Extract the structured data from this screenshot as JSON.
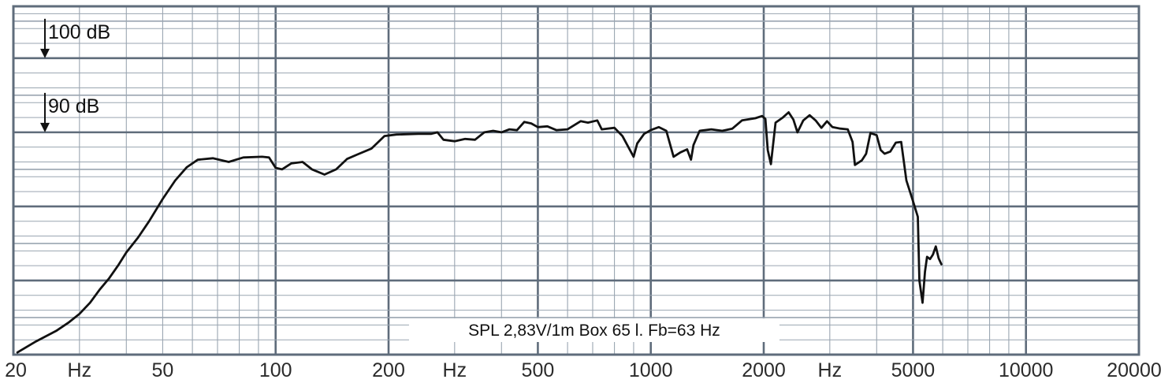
{
  "chart_data": {
    "type": "line",
    "title": "",
    "xlabel": "Hz",
    "ylabel": "",
    "x_scale": "log",
    "xlim": [
      20,
      20000
    ],
    "ylim": [
      60,
      107
    ],
    "grid": true,
    "legend": "none",
    "colors": {
      "background": "#ffffff",
      "grid_minor": "#9aa5b1",
      "grid_major": "#5f6c7b",
      "curve": "#111111",
      "text": "#2b2b2b"
    },
    "x_tick_labels": [
      {
        "value": 20,
        "label": "20"
      },
      {
        "value": 30,
        "label": "Hz"
      },
      {
        "value": 50,
        "label": "50"
      },
      {
        "value": 100,
        "label": "100"
      },
      {
        "value": 200,
        "label": "200"
      },
      {
        "value": 300,
        "label": "Hz"
      },
      {
        "value": 500,
        "label": "500"
      },
      {
        "value": 1000,
        "label": "1000"
      },
      {
        "value": 2000,
        "label": "2000"
      },
      {
        "value": 3000,
        "label": "Hz"
      },
      {
        "value": 5000,
        "label": "5000"
      },
      {
        "value": 10000,
        "label": "10000"
      },
      {
        "value": 20000,
        "label": "20000"
      }
    ],
    "reference_levels": [
      {
        "value": 100,
        "label": "100 dB"
      },
      {
        "value": 90,
        "label": "90 dB"
      }
    ],
    "annotation": "SPL   2,83V/1m   Box 65 l.   Fb=63 Hz",
    "series": [
      {
        "points": [
          [
            20.5,
            60.3
          ],
          [
            23,
            61.8
          ],
          [
            26,
            63.2
          ],
          [
            28,
            64.3
          ],
          [
            30,
            65.5
          ],
          [
            32,
            67.0
          ],
          [
            34,
            68.8
          ],
          [
            36,
            70.3
          ],
          [
            38,
            72.0
          ],
          [
            40,
            73.8
          ],
          [
            43,
            75.8
          ],
          [
            46,
            78.0
          ],
          [
            50,
            81.0
          ],
          [
            54,
            83.5
          ],
          [
            58,
            85.3
          ],
          [
            62,
            86.3
          ],
          [
            68,
            86.5
          ],
          [
            75,
            86.0
          ],
          [
            82,
            86.6
          ],
          [
            92,
            86.7
          ],
          [
            96,
            86.6
          ],
          [
            100,
            85.2
          ],
          [
            104,
            85.0
          ],
          [
            110,
            85.8
          ],
          [
            118,
            86.0
          ],
          [
            125,
            85.0
          ],
          [
            135,
            84.3
          ],
          [
            145,
            85.0
          ],
          [
            155,
            86.4
          ],
          [
            165,
            87.0
          ],
          [
            180,
            87.8
          ],
          [
            195,
            89.5
          ],
          [
            210,
            89.7
          ],
          [
            240,
            89.8
          ],
          [
            260,
            89.8
          ],
          [
            270,
            90.0
          ],
          [
            280,
            89.0
          ],
          [
            300,
            88.8
          ],
          [
            320,
            89.1
          ],
          [
            340,
            89.0
          ],
          [
            360,
            90.0
          ],
          [
            380,
            90.2
          ],
          [
            400,
            90.0
          ],
          [
            420,
            90.4
          ],
          [
            440,
            90.3
          ],
          [
            460,
            91.4
          ],
          [
            480,
            91.2
          ],
          [
            500,
            90.7
          ],
          [
            530,
            90.8
          ],
          [
            560,
            90.3
          ],
          [
            600,
            90.4
          ],
          [
            650,
            91.5
          ],
          [
            680,
            91.3
          ],
          [
            720,
            91.6
          ],
          [
            740,
            90.4
          ],
          [
            800,
            90.6
          ],
          [
            840,
            89.5
          ],
          [
            880,
            87.6
          ],
          [
            900,
            86.7
          ],
          [
            920,
            88.5
          ],
          [
            960,
            89.8
          ],
          [
            1000,
            90.3
          ],
          [
            1050,
            90.7
          ],
          [
            1100,
            90.2
          ],
          [
            1150,
            86.7
          ],
          [
            1200,
            87.3
          ],
          [
            1250,
            87.7
          ],
          [
            1280,
            86.3
          ],
          [
            1300,
            88.3
          ],
          [
            1350,
            90.2
          ],
          [
            1450,
            90.4
          ],
          [
            1550,
            90.2
          ],
          [
            1650,
            90.5
          ],
          [
            1750,
            91.6
          ],
          [
            1900,
            91.9
          ],
          [
            1980,
            92.2
          ],
          [
            2020,
            91.8
          ],
          [
            2050,
            87.6
          ],
          [
            2090,
            85.7
          ],
          [
            2150,
            91.3
          ],
          [
            2250,
            92.0
          ],
          [
            2330,
            92.7
          ],
          [
            2400,
            91.7
          ],
          [
            2460,
            90.0
          ],
          [
            2550,
            91.6
          ],
          [
            2650,
            92.3
          ],
          [
            2750,
            91.6
          ],
          [
            2850,
            90.6
          ],
          [
            2950,
            91.5
          ],
          [
            3050,
            90.7
          ],
          [
            3200,
            90.5
          ],
          [
            3350,
            90.4
          ],
          [
            3450,
            88.7
          ],
          [
            3500,
            85.6
          ],
          [
            3650,
            86.2
          ],
          [
            3750,
            87.1
          ],
          [
            3850,
            89.9
          ],
          [
            4000,
            89.6
          ],
          [
            4100,
            87.6
          ],
          [
            4200,
            87.1
          ],
          [
            4350,
            87.4
          ],
          [
            4500,
            88.6
          ],
          [
            4650,
            88.7
          ],
          [
            4800,
            83.5
          ],
          [
            5000,
            80.7
          ],
          [
            5150,
            78.6
          ],
          [
            5200,
            70.0
          ],
          [
            5300,
            67.0
          ],
          [
            5380,
            71.2
          ],
          [
            5450,
            73.2
          ],
          [
            5550,
            72.9
          ],
          [
            5650,
            73.5
          ],
          [
            5750,
            74.6
          ],
          [
            5850,
            73.0
          ],
          [
            5950,
            72.2
          ]
        ]
      }
    ]
  }
}
